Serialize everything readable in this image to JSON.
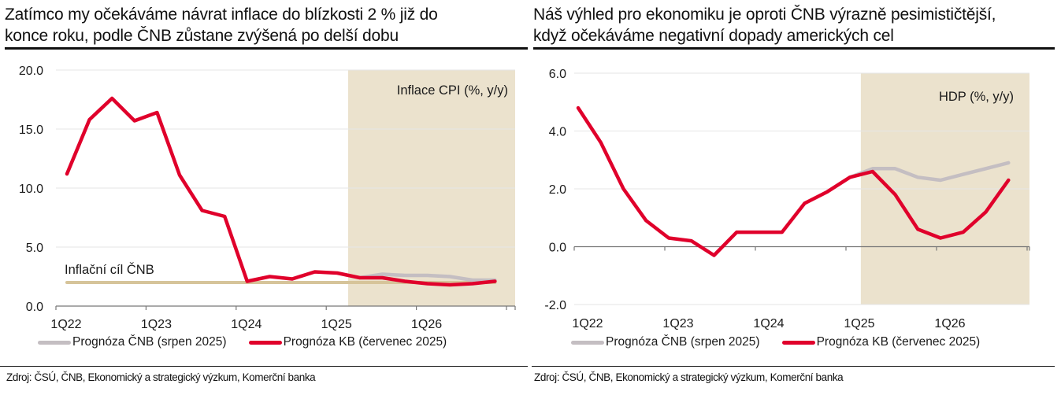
{
  "left": {
    "title_line1": "Zatímco my očekáváme návrat inflace do blízkosti 2 % již do",
    "title_line2": "konce roku, podle ČNB zůstane zvýšená po delší dobu",
    "legend": [
      {
        "label": "Prognóza ČNB (srpen 2025)",
        "color": "#c4bec2"
      },
      {
        "label": "Prognóza KB (červenec 2025)",
        "color": "#e0002b"
      }
    ],
    "source": "Zdroj: ČSÚ, ČNB, Ekonomický a strategický výzkum, Komerční banka"
  },
  "right": {
    "title_line1": "Náš výhled pro ekonomiku je oproti ČNB výrazně pesimističtější,",
    "title_line2": "když očekáváme negativní dopady amerických cel",
    "legend": [
      {
        "label": "Prognóza ČNB (srpen 2025)",
        "color": "#c4bec2"
      },
      {
        "label": "Prognóza KB (červenec 2025)",
        "color": "#e0002b"
      }
    ],
    "source": "Zdroj: ČSÚ, ČNB, Ekonomický a strategický výzkum, Komerční banka"
  },
  "colors": {
    "kb_line": "#e0002b",
    "cnb_line": "#c4bec2",
    "forecast_shade": "#ebe2cd",
    "target_line": "#d6c49a",
    "grid": "#e6e6e6",
    "axis": "#777777"
  },
  "chart_data": [
    {
      "type": "line",
      "title": "Zatímco my očekáváme návrat inflace do blízkosti 2 % již do konce roku, podle ČNB zůstane zvýšená po delší dobu",
      "annotation": "Inflace CPI (%, y/y)",
      "target_label": "Inflační cíl ČNB",
      "target_value": 2.0,
      "xlabel": "",
      "ylabel": "",
      "x": [
        "1Q22",
        "2Q22",
        "3Q22",
        "4Q22",
        "1Q23",
        "2Q23",
        "3Q23",
        "4Q23",
        "1Q24",
        "2Q24",
        "3Q24",
        "4Q24",
        "1Q25",
        "2Q25",
        "3Q25",
        "4Q25",
        "1Q26",
        "2Q26",
        "3Q26",
        "4Q26"
      ],
      "x_tick_labels": [
        "1Q22",
        "1Q23",
        "1Q24",
        "1Q25",
        "1Q26"
      ],
      "y_tick_labels": [
        "20.0",
        "15.0",
        "10.0",
        "5.0",
        "0.0"
      ],
      "ylim": [
        0,
        20
      ],
      "yticks": [
        0,
        5,
        10,
        15,
        20
      ],
      "grid": true,
      "forecast_shade_from": "2Q25",
      "legend_position": "bottom",
      "series": [
        {
          "name": "Prognóza KB (červenec 2025)",
          "values": [
            11.2,
            15.8,
            17.6,
            15.7,
            16.4,
            11.1,
            8.1,
            7.6,
            2.1,
            2.5,
            2.3,
            2.9,
            2.8,
            2.4,
            2.4,
            2.1,
            1.9,
            1.8,
            1.9,
            2.1
          ]
        },
        {
          "name": "Prognóza ČNB (srpen 2025)",
          "values": [
            null,
            null,
            null,
            null,
            null,
            null,
            null,
            null,
            null,
            null,
            null,
            null,
            null,
            2.4,
            2.7,
            2.6,
            2.6,
            2.5,
            2.2,
            2.2
          ]
        }
      ]
    },
    {
      "type": "line",
      "title": "Náš výhled pro ekonomiku je oproti ČNB výrazně pesimističtější, když očekáváme negativní dopady amerických cel",
      "annotation": "HDP (%, y/y)",
      "xlabel": "",
      "ylabel": "",
      "x": [
        "1Q22",
        "2Q22",
        "3Q22",
        "4Q22",
        "1Q23",
        "2Q23",
        "3Q23",
        "4Q23",
        "1Q24",
        "2Q24",
        "3Q24",
        "4Q24",
        "1Q25",
        "2Q25",
        "3Q25",
        "4Q25",
        "1Q26",
        "2Q26",
        "3Q26",
        "4Q26"
      ],
      "x_tick_labels": [
        "1Q22",
        "1Q23",
        "1Q24",
        "1Q25",
        "1Q26"
      ],
      "y_tick_labels": [
        "6.0",
        "4.0",
        "2.0",
        "0.0",
        "-2.0"
      ],
      "ylim": [
        -2,
        6
      ],
      "yticks": [
        -2,
        0,
        2,
        4,
        6
      ],
      "grid": true,
      "forecast_shade_from": "2Q25",
      "legend_position": "bottom",
      "series": [
        {
          "name": "Prognóza KB (červenec 2025)",
          "values": [
            4.8,
            3.6,
            2.0,
            0.9,
            0.3,
            0.2,
            -0.3,
            0.5,
            0.5,
            0.5,
            1.5,
            1.9,
            2.4,
            2.6,
            1.8,
            0.6,
            0.3,
            0.5,
            1.2,
            2.3
          ]
        },
        {
          "name": "Prognóza ČNB (srpen 2025)",
          "values": [
            null,
            null,
            null,
            null,
            null,
            null,
            null,
            null,
            null,
            null,
            null,
            null,
            2.4,
            2.7,
            2.7,
            2.4,
            2.3,
            2.5,
            2.7,
            2.9
          ]
        }
      ]
    }
  ]
}
